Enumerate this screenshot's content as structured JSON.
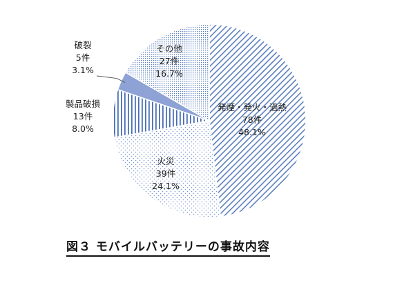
{
  "caption": "図３ モバイルバッテリーの事故内容",
  "chart_data": {
    "type": "pie",
    "title": "図３ モバイルバッテリーの事故内容",
    "start": "top",
    "direction": "clockwise",
    "slices": [
      {
        "name": "発煙・発火・過熱",
        "count_label": "78件",
        "pct_label": "48.1%",
        "value": 78,
        "color": "#5b7fbf",
        "pattern": "diagonal-stripes"
      },
      {
        "name": "火災",
        "count_label": "39件",
        "pct_label": "24.1%",
        "value": 39,
        "color": "#7a9bd0",
        "pattern": "sparse-dots"
      },
      {
        "name": "製品破損",
        "count_label": "13件",
        "pct_label": "8.0%",
        "value": 13,
        "color": "#4a6fb5",
        "pattern": "vertical-lines"
      },
      {
        "name": "破裂",
        "count_label": "5件",
        "pct_label": "3.1%",
        "value": 5,
        "color": "#8ea2d6",
        "pattern": "solid"
      },
      {
        "name": "その他",
        "count_label": "27件",
        "pct_label": "16.7%",
        "value": 27,
        "color": "#5b7fbf",
        "pattern": "dense-dots"
      }
    ]
  }
}
